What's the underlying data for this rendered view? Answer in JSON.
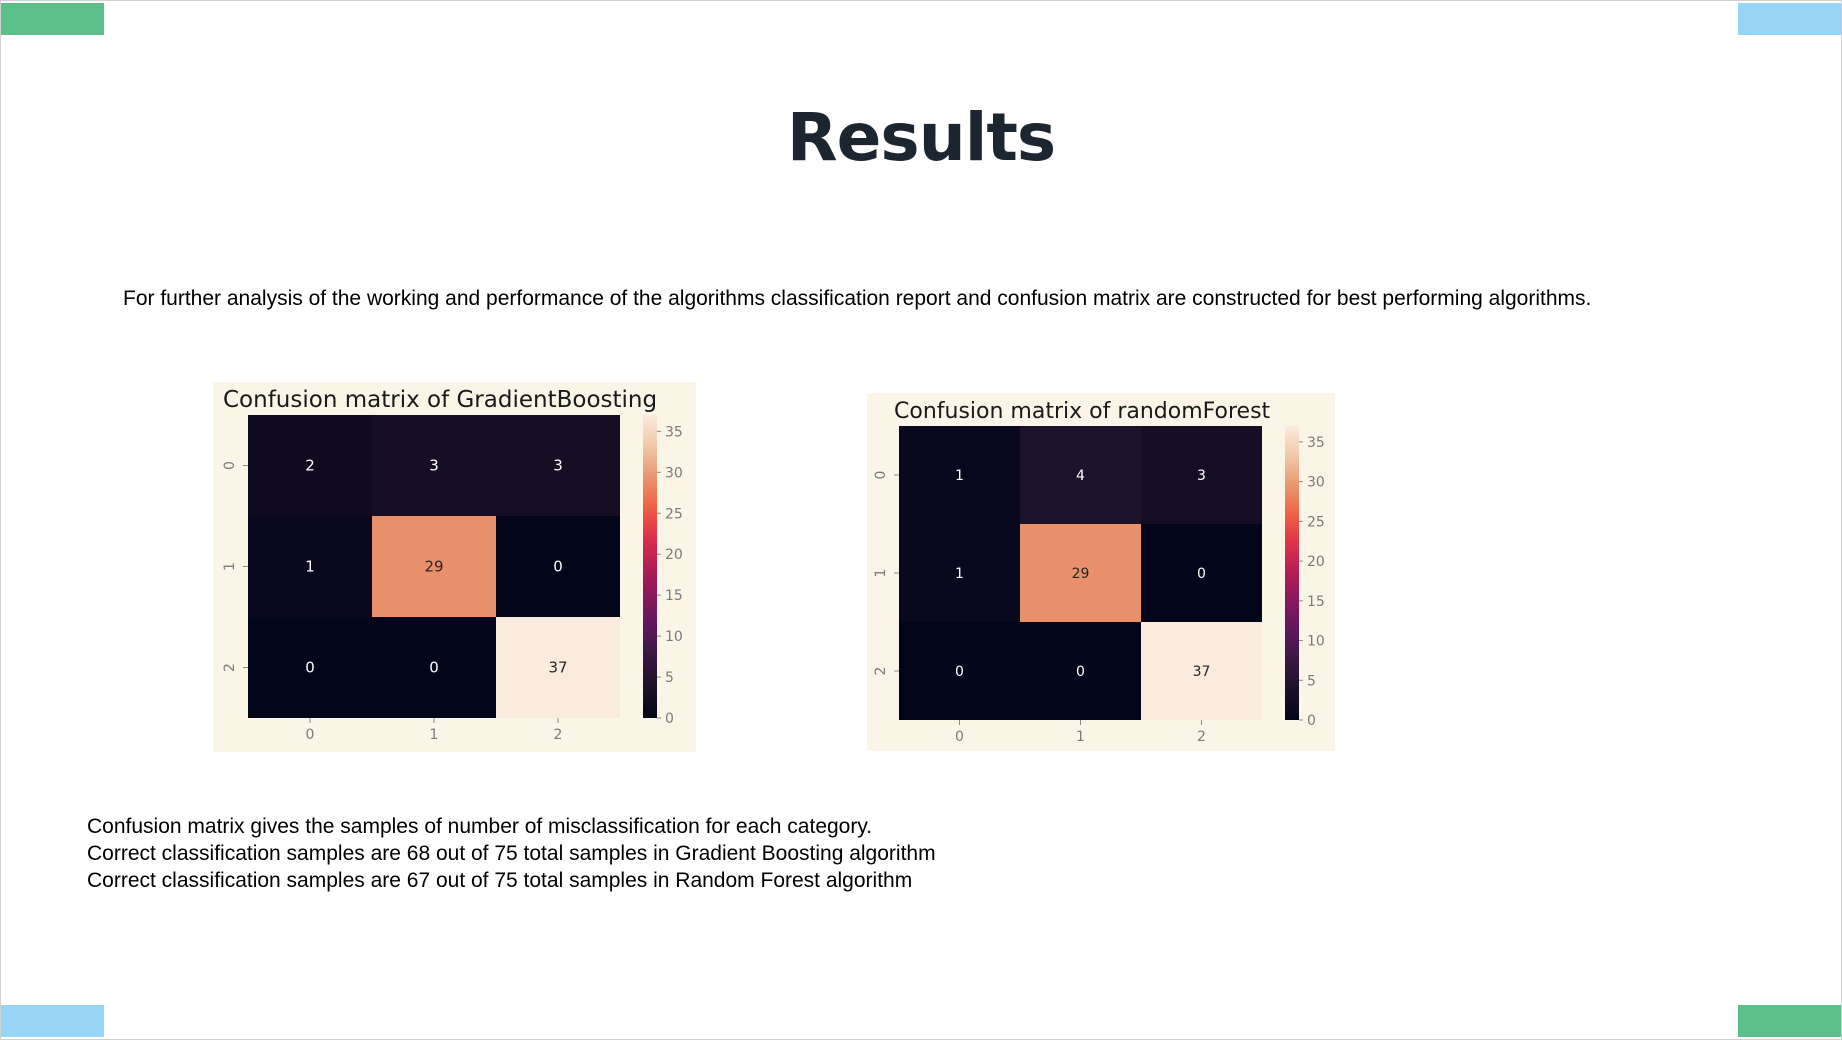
{
  "slide": {
    "title": "Results",
    "intro": "For further analysis of the working and performance of the algorithms classification report and confusion matrix are constructed for best performing algorithms.",
    "notes": [
      "Confusion matrix gives the samples of number of misclassification for each category.",
      "Correct classification samples are 68 out of 75 total samples in Gradient Boosting algorithm",
      "Correct classification samples are 67 out of 75 total samples in Random Forest algorithm"
    ],
    "accent_colors": {
      "green": "#5dbf8a",
      "blue": "#97d5f6"
    }
  },
  "chart_data": [
    {
      "type": "heatmap",
      "title": "Confusion matrix of GradientBoosting",
      "x_tick_labels": [
        "0",
        "1",
        "2"
      ],
      "y_tick_labels": [
        "0",
        "1",
        "2"
      ],
      "matrix": [
        [
          2,
          3,
          3
        ],
        [
          1,
          29,
          0
        ],
        [
          0,
          0,
          37
        ]
      ],
      "colorbar": {
        "min": 0,
        "max": 37,
        "ticks": [
          0,
          5,
          10,
          15,
          20,
          25,
          30,
          35
        ]
      },
      "colormap": "rocket"
    },
    {
      "type": "heatmap",
      "title": "Confusion matrix of randomForest",
      "x_tick_labels": [
        "0",
        "1",
        "2"
      ],
      "y_tick_labels": [
        "0",
        "1",
        "2"
      ],
      "matrix": [
        [
          1,
          4,
          3
        ],
        [
          1,
          29,
          0
        ],
        [
          0,
          0,
          37
        ]
      ],
      "colorbar": {
        "min": 0,
        "max": 37,
        "ticks": [
          0,
          5,
          10,
          15,
          20,
          25,
          30,
          35
        ]
      },
      "colormap": "rocket"
    }
  ]
}
